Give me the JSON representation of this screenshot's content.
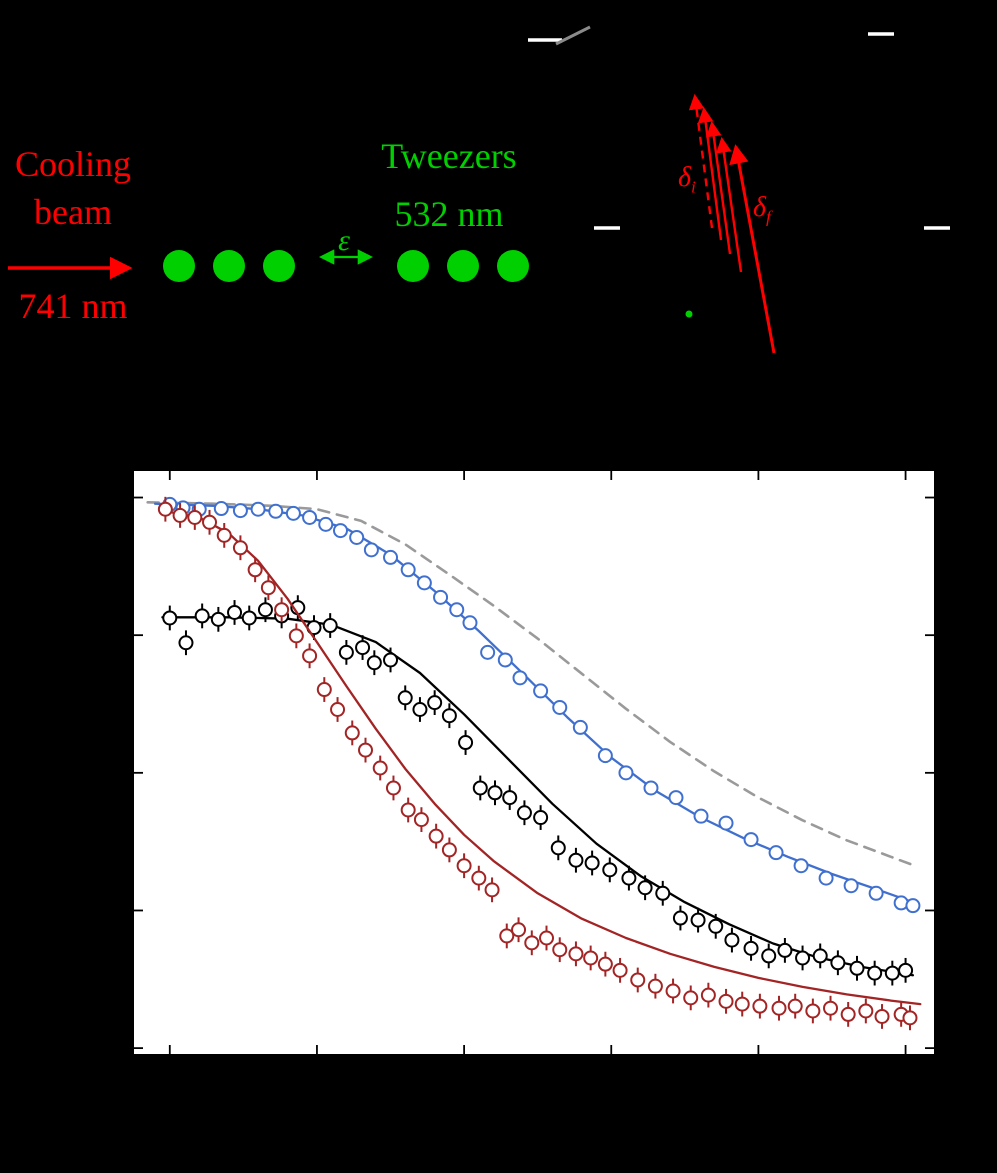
{
  "colors": {
    "background": "#000000",
    "red": "#ff0000",
    "green": "#00cf00",
    "white": "#ffffff",
    "gray_level": "#8a8a8a",
    "plot_background": "#ffffff",
    "plot_frame": "#000000"
  },
  "panel_a": {
    "cooling_line1": "Cooling",
    "cooling_line2": "beam",
    "cooling_wavelength": "741 nm",
    "tweezers_label": "Tweezers",
    "tweezers_wavelength": "532 nm",
    "epsilon": "ε",
    "delta_i_base": "δ",
    "delta_i_sub": "i",
    "delta_f_base": "δ",
    "delta_f_sub": "f"
  },
  "chart_data": {
    "type": "scatter",
    "title": "",
    "xlabel": "",
    "ylabel": "",
    "tick_labels_visible": false,
    "xlim": [
      -0.25,
      5.2
    ],
    "ylim": [
      0.19,
      1.04
    ],
    "xticks": [
      0,
      1,
      2,
      3,
      4,
      5
    ],
    "yticks": [
      0.2,
      0.4,
      0.6,
      0.8,
      1.0
    ],
    "grid": false,
    "legend": "none",
    "series": [
      {
        "name": "gray-dashed-theory",
        "color": "#9a9a9a",
        "dashed": true,
        "marker": "none",
        "yerr": 0,
        "points": [],
        "fit": [
          [
            -0.15,
            0.993
          ],
          [
            0.3,
            0.991
          ],
          [
            0.7,
            0.988
          ],
          [
            1.0,
            0.983
          ],
          [
            1.3,
            0.966
          ],
          [
            1.6,
            0.932
          ],
          [
            1.9,
            0.888
          ],
          [
            2.2,
            0.843
          ],
          [
            2.5,
            0.795
          ],
          [
            2.8,
            0.744
          ],
          [
            3.1,
            0.693
          ],
          [
            3.4,
            0.645
          ],
          [
            3.7,
            0.602
          ],
          [
            4.0,
            0.564
          ],
          [
            4.3,
            0.531
          ],
          [
            4.6,
            0.502
          ],
          [
            4.9,
            0.478
          ],
          [
            5.05,
            0.466
          ]
        ]
      },
      {
        "name": "blue-circles",
        "color": "#4070cf",
        "dashed": false,
        "marker": "circle",
        "yerr": 0,
        "points": [
          [
            0.0,
            0.99
          ],
          [
            0.09,
            0.985
          ],
          [
            0.2,
            0.983
          ],
          [
            0.35,
            0.984
          ],
          [
            0.48,
            0.981
          ],
          [
            0.6,
            0.983
          ],
          [
            0.72,
            0.98
          ],
          [
            0.84,
            0.977
          ],
          [
            0.95,
            0.971
          ],
          [
            1.06,
            0.961
          ],
          [
            1.16,
            0.952
          ],
          [
            1.27,
            0.942
          ],
          [
            1.37,
            0.924
          ],
          [
            1.5,
            0.913
          ],
          [
            1.62,
            0.895
          ],
          [
            1.73,
            0.876
          ],
          [
            1.84,
            0.855
          ],
          [
            1.95,
            0.837
          ],
          [
            2.04,
            0.818
          ],
          [
            2.16,
            0.775
          ],
          [
            2.28,
            0.764
          ],
          [
            2.38,
            0.738
          ],
          [
            2.52,
            0.719
          ],
          [
            2.65,
            0.695
          ],
          [
            2.79,
            0.666
          ],
          [
            2.96,
            0.625
          ],
          [
            3.1,
            0.6
          ],
          [
            3.27,
            0.578
          ],
          [
            3.44,
            0.564
          ],
          [
            3.61,
            0.537
          ],
          [
            3.78,
            0.527
          ],
          [
            3.95,
            0.503
          ],
          [
            4.12,
            0.484
          ],
          [
            4.29,
            0.465
          ],
          [
            4.46,
            0.447
          ],
          [
            4.63,
            0.436
          ],
          [
            4.8,
            0.425
          ],
          [
            4.97,
            0.411
          ],
          [
            5.05,
            0.407
          ]
        ],
        "fit": [
          [
            -0.1,
            0.991
          ],
          [
            0.3,
            0.988
          ],
          [
            0.6,
            0.983
          ],
          [
            0.9,
            0.974
          ],
          [
            1.2,
            0.955
          ],
          [
            1.5,
            0.917
          ],
          [
            1.8,
            0.864
          ],
          [
            2.1,
            0.806
          ],
          [
            2.4,
            0.744
          ],
          [
            2.7,
            0.681
          ],
          [
            3.0,
            0.622
          ],
          [
            3.3,
            0.574
          ],
          [
            3.6,
            0.536
          ],
          [
            3.9,
            0.505
          ],
          [
            4.2,
            0.478
          ],
          [
            4.5,
            0.453
          ],
          [
            4.8,
            0.431
          ],
          [
            5.05,
            0.412
          ]
        ]
      },
      {
        "name": "black-circles",
        "color": "#000000",
        "dashed": false,
        "marker": "circle",
        "yerr": 0.018,
        "points": [
          [
            0.0,
            0.825
          ],
          [
            0.11,
            0.789
          ],
          [
            0.22,
            0.828
          ],
          [
            0.33,
            0.823
          ],
          [
            0.44,
            0.833
          ],
          [
            0.54,
            0.825
          ],
          [
            0.65,
            0.837
          ],
          [
            0.76,
            0.828
          ],
          [
            0.87,
            0.84
          ],
          [
            0.98,
            0.811
          ],
          [
            1.09,
            0.814
          ],
          [
            1.2,
            0.775
          ],
          [
            1.31,
            0.782
          ],
          [
            1.39,
            0.76
          ],
          [
            1.5,
            0.764
          ],
          [
            1.6,
            0.709
          ],
          [
            1.7,
            0.692
          ],
          [
            1.8,
            0.702
          ],
          [
            1.9,
            0.683
          ],
          [
            2.01,
            0.644
          ],
          [
            2.11,
            0.578
          ],
          [
            2.21,
            0.571
          ],
          [
            2.31,
            0.564
          ],
          [
            2.41,
            0.542
          ],
          [
            2.52,
            0.535
          ],
          [
            2.64,
            0.491
          ],
          [
            2.76,
            0.473
          ],
          [
            2.87,
            0.469
          ],
          [
            2.99,
            0.459
          ],
          [
            3.12,
            0.447
          ],
          [
            3.23,
            0.433
          ],
          [
            3.35,
            0.425
          ],
          [
            3.47,
            0.389
          ],
          [
            3.59,
            0.386
          ],
          [
            3.71,
            0.377
          ],
          [
            3.82,
            0.357
          ],
          [
            3.95,
            0.345
          ],
          [
            4.07,
            0.334
          ],
          [
            4.18,
            0.342
          ],
          [
            4.3,
            0.331
          ],
          [
            4.42,
            0.334
          ],
          [
            4.54,
            0.324
          ],
          [
            4.67,
            0.316
          ],
          [
            4.79,
            0.309
          ],
          [
            4.91,
            0.309
          ],
          [
            5.0,
            0.313
          ]
        ],
        "fit": [
          [
            -0.05,
            0.826
          ],
          [
            0.4,
            0.826
          ],
          [
            0.8,
            0.824
          ],
          [
            1.1,
            0.815
          ],
          [
            1.4,
            0.79
          ],
          [
            1.7,
            0.745
          ],
          [
            2.0,
            0.685
          ],
          [
            2.3,
            0.62
          ],
          [
            2.6,
            0.555
          ],
          [
            2.9,
            0.497
          ],
          [
            3.2,
            0.45
          ],
          [
            3.5,
            0.412
          ],
          [
            3.8,
            0.38
          ],
          [
            4.1,
            0.352
          ],
          [
            4.4,
            0.332
          ],
          [
            4.7,
            0.318
          ],
          [
            5.05,
            0.306
          ]
        ]
      },
      {
        "name": "darkred-circles",
        "color": "#a32424",
        "dashed": false,
        "marker": "circle",
        "yerr": 0.018,
        "points": [
          [
            -0.03,
            0.983
          ],
          [
            0.07,
            0.974
          ],
          [
            0.17,
            0.971
          ],
          [
            0.27,
            0.964
          ],
          [
            0.37,
            0.945
          ],
          [
            0.48,
            0.927
          ],
          [
            0.58,
            0.895
          ],
          [
            0.67,
            0.869
          ],
          [
            0.76,
            0.837
          ],
          [
            0.86,
            0.799
          ],
          [
            0.95,
            0.77
          ],
          [
            1.05,
            0.721
          ],
          [
            1.14,
            0.692
          ],
          [
            1.24,
            0.658
          ],
          [
            1.33,
            0.633
          ],
          [
            1.43,
            0.607
          ],
          [
            1.52,
            0.578
          ],
          [
            1.62,
            0.546
          ],
          [
            1.71,
            0.532
          ],
          [
            1.81,
            0.508
          ],
          [
            1.9,
            0.488
          ],
          [
            2.0,
            0.465
          ],
          [
            2.1,
            0.447
          ],
          [
            2.19,
            0.43
          ],
          [
            2.29,
            0.363
          ],
          [
            2.37,
            0.372
          ],
          [
            2.46,
            0.353
          ],
          [
            2.56,
            0.36
          ],
          [
            2.65,
            0.343
          ],
          [
            2.76,
            0.337
          ],
          [
            2.86,
            0.331
          ],
          [
            2.96,
            0.322
          ],
          [
            3.06,
            0.313
          ],
          [
            3.18,
            0.299
          ],
          [
            3.3,
            0.29
          ],
          [
            3.42,
            0.283
          ],
          [
            3.54,
            0.273
          ],
          [
            3.66,
            0.277
          ],
          [
            3.78,
            0.268
          ],
          [
            3.89,
            0.264
          ],
          [
            4.01,
            0.261
          ],
          [
            4.14,
            0.258
          ],
          [
            4.25,
            0.261
          ],
          [
            4.37,
            0.254
          ],
          [
            4.49,
            0.258
          ],
          [
            4.61,
            0.249
          ],
          [
            4.73,
            0.254
          ],
          [
            4.84,
            0.246
          ],
          [
            4.97,
            0.249
          ],
          [
            5.03,
            0.244
          ]
        ],
        "fit": [
          [
            -0.05,
            0.981
          ],
          [
            0.2,
            0.971
          ],
          [
            0.4,
            0.948
          ],
          [
            0.6,
            0.908
          ],
          [
            0.8,
            0.853
          ],
          [
            1.0,
            0.79
          ],
          [
            1.2,
            0.726
          ],
          [
            1.4,
            0.664
          ],
          [
            1.6,
            0.606
          ],
          [
            1.8,
            0.555
          ],
          [
            2.0,
            0.51
          ],
          [
            2.2,
            0.472
          ],
          [
            2.5,
            0.425
          ],
          [
            2.8,
            0.388
          ],
          [
            3.1,
            0.36
          ],
          [
            3.4,
            0.337
          ],
          [
            3.7,
            0.318
          ],
          [
            4.0,
            0.302
          ],
          [
            4.3,
            0.289
          ],
          [
            4.6,
            0.278
          ],
          [
            4.9,
            0.269
          ],
          [
            5.1,
            0.264
          ]
        ]
      }
    ]
  }
}
